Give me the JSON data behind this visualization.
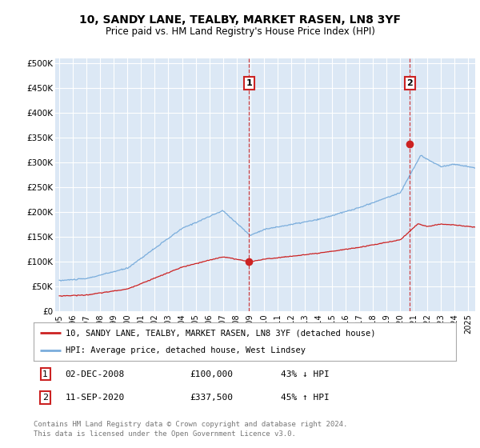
{
  "title": "10, SANDY LANE, TEALBY, MARKET RASEN, LN8 3YF",
  "subtitle": "Price paid vs. HM Land Registry's House Price Index (HPI)",
  "ylabel_ticks": [
    "£0",
    "£50K",
    "£100K",
    "£150K",
    "£200K",
    "£250K",
    "£300K",
    "£350K",
    "£400K",
    "£450K",
    "£500K"
  ],
  "ytick_values": [
    0,
    50000,
    100000,
    150000,
    200000,
    250000,
    300000,
    350000,
    400000,
    450000,
    500000
  ],
  "xlim_start": 1994.7,
  "xlim_end": 2025.5,
  "ylim_min": 0,
  "ylim_max": 510000,
  "purchase1_date": 2008.92,
  "purchase1_price": 100000,
  "purchase1_label": "1",
  "purchase2_date": 2020.7,
  "purchase2_price": 337500,
  "purchase2_label": "2",
  "hpi_color": "#7aaddc",
  "price_color": "#cc2222",
  "bg_color": "#dce8f5",
  "legend_line1": "10, SANDY LANE, TEALBY, MARKET RASEN, LN8 3YF (detached house)",
  "legend_line2": "HPI: Average price, detached house, West Lindsey",
  "footer": "Contains HM Land Registry data © Crown copyright and database right 2024.\nThis data is licensed under the Open Government Licence v3.0.",
  "xtick_years": [
    1995,
    1996,
    1997,
    1998,
    1999,
    2000,
    2001,
    2002,
    2003,
    2004,
    2005,
    2006,
    2007,
    2008,
    2009,
    2010,
    2011,
    2012,
    2013,
    2014,
    2015,
    2016,
    2017,
    2018,
    2019,
    2020,
    2021,
    2022,
    2023,
    2024,
    2025
  ]
}
